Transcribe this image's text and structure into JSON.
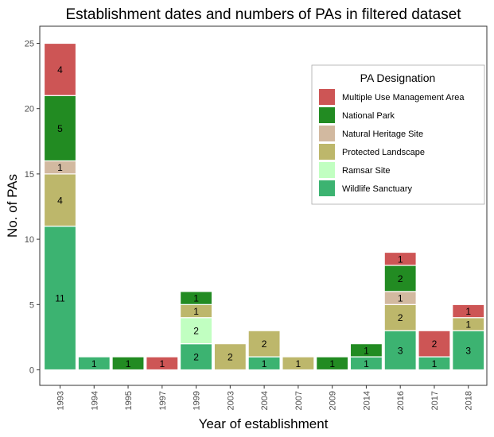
{
  "chart_data": {
    "type": "bar",
    "stacked": true,
    "title": "Establishment dates and numbers of PAs in filtered dataset",
    "xlabel": "Year of establishment",
    "ylabel": "No. of PAs",
    "ylim": [
      0,
      25
    ],
    "yticks": [
      0,
      5,
      10,
      15,
      20,
      25
    ],
    "grid": false,
    "legend_position": "top-right",
    "legend_title": "PA Designation",
    "categories": [
      "1993",
      "1994",
      "1995",
      "1997",
      "1999",
      "2003",
      "2004",
      "2007",
      "2009",
      "2014",
      "2016",
      "2017",
      "2018"
    ],
    "series": [
      {
        "name": "Wildlife Sanctuary",
        "color": "#3cb371",
        "values": [
          11,
          1,
          0,
          0,
          2,
          0,
          1,
          0,
          0,
          1,
          3,
          1,
          3
        ]
      },
      {
        "name": "Ramsar Site",
        "color": "#c1ffc1",
        "values": [
          0,
          0,
          0,
          0,
          2,
          0,
          0,
          0,
          0,
          0,
          0,
          0,
          0
        ]
      },
      {
        "name": "Protected Landscape",
        "color": "#bdb76b",
        "values": [
          4,
          0,
          0,
          0,
          1,
          2,
          2,
          1,
          0,
          0,
          2,
          0,
          1
        ]
      },
      {
        "name": "Natural Heritage Site",
        "color": "#d2b9a0",
        "values": [
          1,
          0,
          0,
          0,
          0,
          0,
          0,
          0,
          0,
          0,
          1,
          0,
          0
        ]
      },
      {
        "name": "National Park",
        "color": "#228b22",
        "values": [
          5,
          0,
          1,
          0,
          1,
          0,
          0,
          0,
          1,
          1,
          2,
          0,
          0
        ]
      },
      {
        "name": "Multiple Use Management Area",
        "color": "#cd5555",
        "values": [
          4,
          0,
          0,
          1,
          0,
          0,
          0,
          0,
          0,
          0,
          1,
          2,
          1
        ]
      }
    ],
    "legend_order": [
      "Multiple Use Management Area",
      "National Park",
      "Natural Heritage Site",
      "Protected Landscape",
      "Ramsar Site",
      "Wildlife Sanctuary"
    ]
  }
}
